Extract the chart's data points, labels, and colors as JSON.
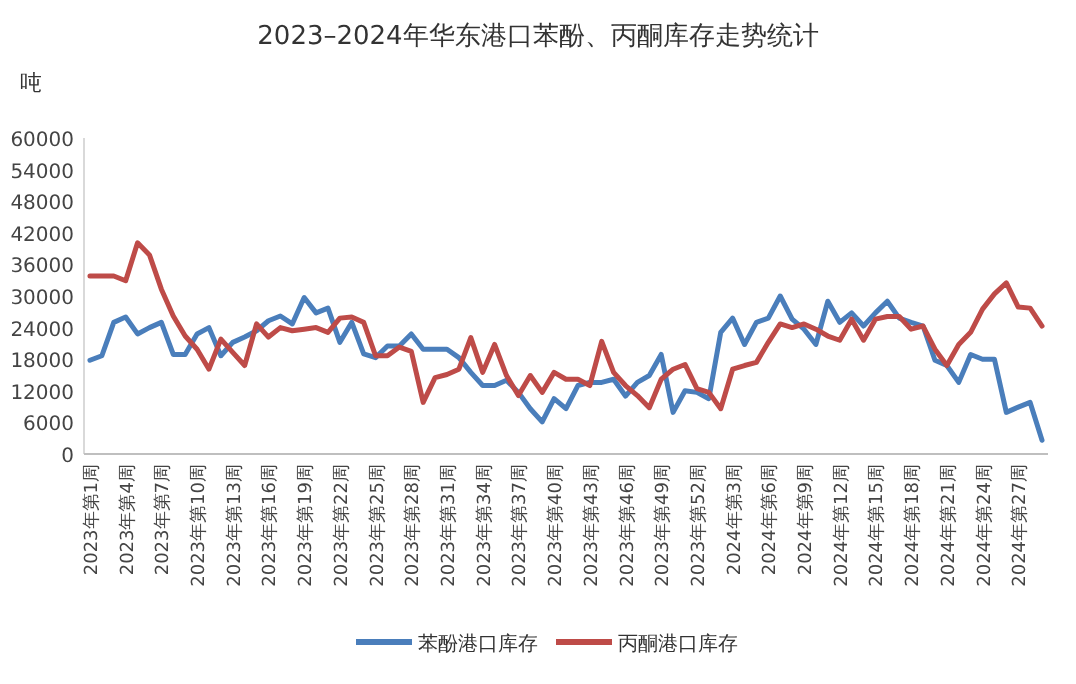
{
  "chart_data": {
    "type": "line",
    "title": "2023–2024年华东港口苯酚、丙酮库存走势统计",
    "ylabel": "吨",
    "categories": [
      "2023年第1周",
      null,
      null,
      "2023年第4周",
      null,
      null,
      "2023年第7周",
      null,
      null,
      "2023年第10周",
      null,
      null,
      "2023年第13周",
      null,
      null,
      "2023年第16周",
      null,
      null,
      "2023年第19周",
      null,
      null,
      "2023年第22周",
      null,
      null,
      "2023年第25周",
      null,
      null,
      "2023年第28周",
      null,
      null,
      "2023年第31周",
      null,
      null,
      "2023年第34周",
      null,
      null,
      "2023年第37周",
      null,
      null,
      "2023年第40周",
      null,
      null,
      "2023年第43周",
      null,
      null,
      "2023年第46周",
      null,
      null,
      "2023年第49周",
      null,
      null,
      "2023年第52周",
      null,
      null,
      "2024年第3周",
      null,
      null,
      "2024年第6周",
      null,
      null,
      "2024年第9周",
      null,
      null,
      "2024年第12周",
      null,
      null,
      "2024年第15周",
      null,
      null,
      "2024年第18周",
      null,
      null,
      "2024年第21周",
      null,
      null,
      "2024年第24周",
      null,
      null,
      "2024年第27周",
      null,
      null
    ],
    "series": [
      {
        "name": "苯酚港口库存",
        "color": "#4a7ebb",
        "values": [
          17800,
          18650,
          25000,
          26000,
          22800,
          24000,
          25000,
          18900,
          18900,
          22800,
          24000,
          18650,
          21200,
          22200,
          23400,
          25300,
          26200,
          24700,
          29700,
          26800,
          27700,
          21200,
          25000,
          19000,
          18300,
          20500,
          20500,
          22800,
          19900,
          19900,
          19900,
          18300,
          15500,
          13000,
          13000,
          14000,
          11700,
          8600,
          6100,
          10500,
          8600,
          13000,
          13600,
          13600,
          14200,
          11000,
          13600,
          14900,
          18900,
          7900,
          12000,
          11700,
          10500,
          23100,
          25800,
          20800,
          25000,
          25800,
          30000,
          25600,
          23700,
          20800,
          29000,
          25000,
          26800,
          24300,
          26800,
          29000,
          25800,
          25000,
          24300,
          17800,
          16800,
          13600,
          18900,
          18000,
          18000,
          7900,
          8900,
          9800,
          2600
        ]
      },
      {
        "name": "丙酮港口库存",
        "color": "#be4b48",
        "values": [
          33800,
          33800,
          33800,
          32900,
          40100,
          37800,
          31300,
          26200,
          22400,
          19900,
          16100,
          21800,
          19300,
          16800,
          24700,
          22200,
          24000,
          23400,
          23700,
          24000,
          23100,
          25800,
          26000,
          25000,
          18650,
          18650,
          20300,
          19500,
          9800,
          14500,
          15100,
          16100,
          22100,
          15500,
          20800,
          14900,
          11100,
          14900,
          11700,
          15500,
          14200,
          14200,
          13000,
          21400,
          15500,
          13000,
          11100,
          8800,
          14200,
          16100,
          17000,
          12400,
          11700,
          8600,
          16100,
          16800,
          17400,
          21200,
          24700,
          24000,
          24700,
          23700,
          22400,
          21600,
          25600,
          21600,
          25600,
          26100,
          26100,
          23700,
          24300,
          19900,
          16800,
          20800,
          23100,
          27500,
          30400,
          32500,
          27900,
          27700,
          24300
        ]
      }
    ],
    "ylim": [
      0,
      60000
    ],
    "yticks": [
      0,
      6000,
      12000,
      18000,
      24000,
      30000,
      36000,
      42000,
      48000,
      54000,
      60000
    ],
    "grid": false,
    "legend": "bottom",
    "marker": "none",
    "line_style": "solid"
  }
}
